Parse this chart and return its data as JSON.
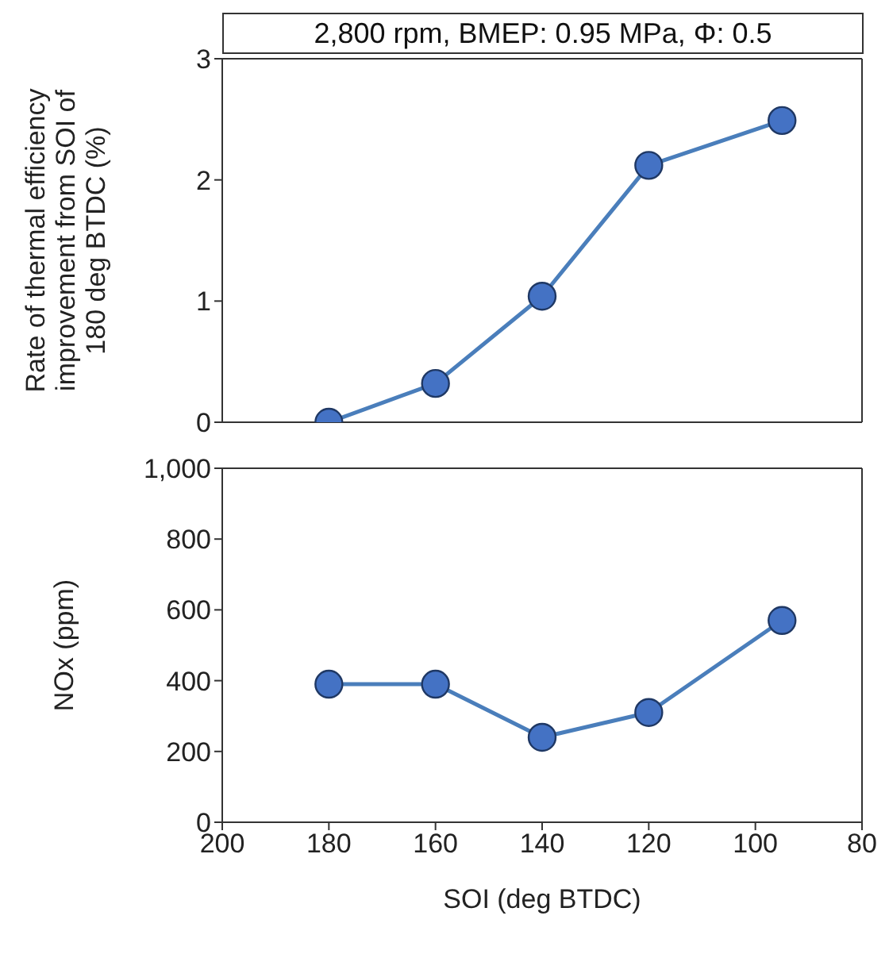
{
  "chart_data": [
    {
      "type": "line",
      "title": "2,800 rpm, BMEP: 0.95 MPa, Φ: 0.5",
      "ylabel": "Rate of thermal efficiency improvement from SOI of 180 deg BTDC (%)",
      "x": [
        180,
        160,
        140,
        120,
        95
      ],
      "xlim": [
        200,
        80
      ],
      "xticks": [
        200,
        180,
        160,
        140,
        120,
        100,
        80
      ],
      "ylim": [
        0,
        3
      ],
      "yticks": [
        0,
        1,
        2,
        3
      ],
      "tick_labels": "y",
      "marker": "circle",
      "grid": false,
      "legend": false,
      "series": [
        {
          "color": "#4a7ebb",
          "values": [
            0,
            0.32,
            1.04,
            2.12,
            2.49
          ]
        }
      ]
    },
    {
      "type": "line",
      "xlabel": "SOI (deg BTDC)",
      "ylabel": "NOx (ppm)",
      "x": [
        180,
        160,
        140,
        120,
        95
      ],
      "xlim": [
        200,
        80
      ],
      "xticks": [
        200,
        180,
        160,
        140,
        120,
        100,
        80
      ],
      "ylim": [
        0,
        1000
      ],
      "yticks": [
        0,
        200,
        400,
        600,
        800,
        {
          "value": 1000,
          "label": "1,000"
        }
      ],
      "marker": "circle",
      "grid": false,
      "legend": false,
      "series": [
        {
          "color": "#4a7ebb",
          "values": [
            390,
            390,
            240,
            310,
            570
          ]
        }
      ]
    }
  ]
}
